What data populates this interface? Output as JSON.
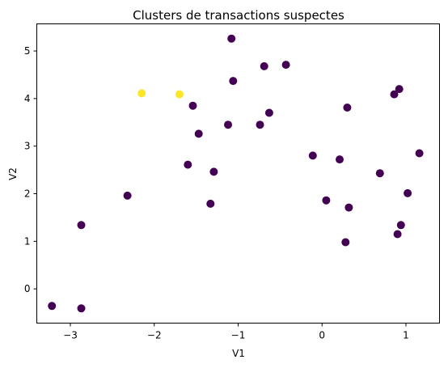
{
  "chart_data": {
    "type": "scatter",
    "title": "Clusters de transactions suspectes",
    "xlabel": "V1",
    "ylabel": "V2",
    "xlim": [
      -3.4,
      1.4
    ],
    "ylim": [
      -0.72,
      5.57
    ],
    "xticks": [
      -3,
      -2,
      -1,
      0,
      1
    ],
    "yticks": [
      0,
      1,
      2,
      3,
      4,
      5
    ],
    "xtick_labels": [
      "−3",
      "−2",
      "−1",
      "0",
      "1"
    ],
    "ytick_labels": [
      "0",
      "1",
      "2",
      "3",
      "4",
      "5"
    ],
    "grid": false,
    "colors": {
      "cluster_0": "#440154",
      "cluster_1": "#fde725"
    },
    "series": [
      {
        "cluster": 0,
        "color": "#440154",
        "points": [
          [
            -3.22,
            -0.36
          ],
          [
            -2.87,
            -0.41
          ],
          [
            -2.87,
            1.34
          ],
          [
            -2.32,
            1.96
          ],
          [
            -1.6,
            2.61
          ],
          [
            -1.54,
            3.85
          ],
          [
            -1.47,
            3.26
          ],
          [
            -1.33,
            1.79
          ],
          [
            -1.29,
            2.46
          ],
          [
            -1.12,
            3.45
          ],
          [
            -1.08,
            5.26
          ],
          [
            -1.06,
            4.37
          ],
          [
            -0.74,
            3.45
          ],
          [
            -0.69,
            4.68
          ],
          [
            -0.63,
            3.7
          ],
          [
            -0.43,
            4.71
          ],
          [
            -0.11,
            2.8
          ],
          [
            0.05,
            1.86
          ],
          [
            0.21,
            2.72
          ],
          [
            0.28,
            0.98
          ],
          [
            0.3,
            3.81
          ],
          [
            0.32,
            1.71
          ],
          [
            0.69,
            2.43
          ],
          [
            0.86,
            4.09
          ],
          [
            0.9,
            1.15
          ],
          [
            0.92,
            4.2
          ],
          [
            0.94,
            1.34
          ],
          [
            1.02,
            2.01
          ],
          [
            1.16,
            2.85
          ]
        ]
      },
      {
        "cluster": 1,
        "color": "#fde725",
        "points": [
          [
            -2.15,
            4.11
          ],
          [
            -1.7,
            4.09
          ]
        ]
      }
    ]
  }
}
